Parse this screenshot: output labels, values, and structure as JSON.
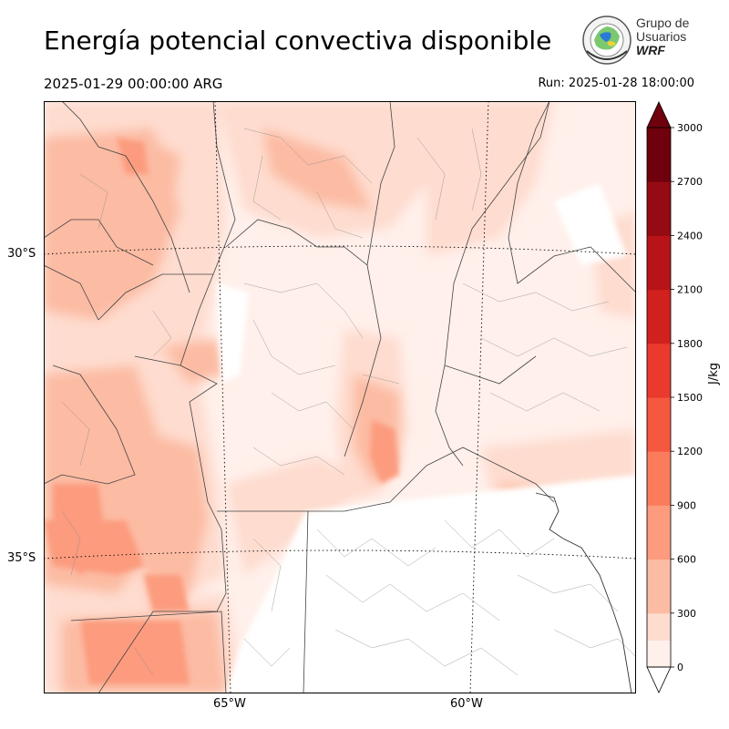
{
  "title": "Energía potencial convectiva disponible",
  "valid_time": "2025-01-29 00:00:00 ARG",
  "run_time": "Run: 2025-01-28 18:00:00",
  "logo": {
    "line1": "Grupo de",
    "line2": "Usuarios",
    "line3": "WRF"
  },
  "map": {
    "lat_labels": [
      "30°S",
      "35°S"
    ],
    "lon_labels": [
      "65°W",
      "60°W"
    ]
  },
  "colorbar": {
    "unit": "J/kg",
    "ticks": [
      "0",
      "300",
      "600",
      "900",
      "1200",
      "1500",
      "1800",
      "2100",
      "2400",
      "2700",
      "3000"
    ],
    "levels": [
      0,
      150,
      300,
      600,
      900,
      1200,
      1500,
      1800,
      2100,
      2400,
      2700,
      3000
    ],
    "colors": [
      "#fff0eb",
      "#fedccf",
      "#fcbba3",
      "#fc9b7e",
      "#fb7c5c",
      "#f6573f",
      "#ea3a2d",
      "#d1211e",
      "#b71318",
      "#950b13",
      "#6e010d"
    ],
    "extend": "both"
  }
}
